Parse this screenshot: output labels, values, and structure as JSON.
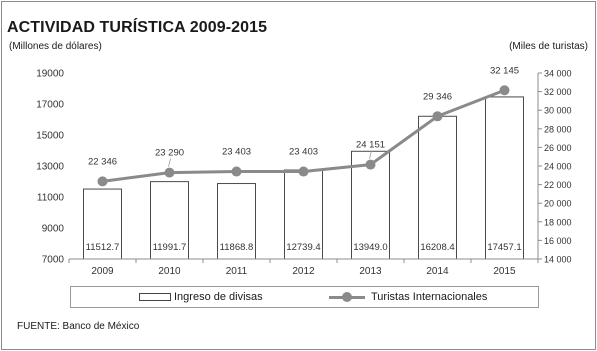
{
  "title": "ACTIVIDAD TURÍSTICA 2009-2015",
  "left_axis_label": "(Millones de dólares)",
  "right_axis_label": "(Miles de turistas)",
  "source": "FUENTE: Banco de México",
  "legend": {
    "bar": "Ingreso de divisas",
    "line": "Turistas Internacionales"
  },
  "colors": {
    "bar_fill": "#ffffff",
    "bar_stroke": "#4a4a4a",
    "line": "#8a8a8a",
    "axis": "#8c8c8c"
  },
  "chart_data": {
    "type": "bar+line",
    "categories": [
      "2009",
      "2010",
      "2011",
      "2012",
      "2013",
      "2014",
      "2015"
    ],
    "series": [
      {
        "name": "Ingreso de divisas",
        "type": "bar",
        "axis": "left",
        "values": [
          11512.7,
          11991.7,
          11868.8,
          12739.4,
          13949.0,
          16208.4,
          17457.1
        ],
        "labels": [
          "11512.7",
          "11991.7",
          "11868.8",
          "12739.4",
          "13949.0",
          "16208.4",
          "17457.1"
        ]
      },
      {
        "name": "Turistas Internacionales",
        "type": "line",
        "axis": "right",
        "values": [
          22346,
          23290,
          23403,
          23403,
          24151,
          29346,
          32145
        ],
        "labels": [
          "22 346",
          "23 290",
          "23 403",
          "23 403",
          "24 151",
          "29 346",
          "32 145"
        ]
      }
    ],
    "left_axis": {
      "min": 7000,
      "max": 19000,
      "ticks": [
        7000,
        9000,
        11000,
        13000,
        15000,
        17000,
        19000
      ],
      "tick_labels": [
        "7000",
        "9000",
        "11000",
        "13000",
        "15000",
        "17000",
        "19000"
      ]
    },
    "right_axis": {
      "min": 14000,
      "max": 34000,
      "ticks": [
        14000,
        16000,
        18000,
        20000,
        22000,
        24000,
        26000,
        28000,
        30000,
        32000,
        34000
      ],
      "tick_labels": [
        "14 000",
        "16 000",
        "18 000",
        "20 000",
        "22 000",
        "24 000",
        "26 000",
        "28 000",
        "30 000",
        "32 000",
        "34 000"
      ]
    },
    "grid": false,
    "legend_position": "bottom"
  }
}
